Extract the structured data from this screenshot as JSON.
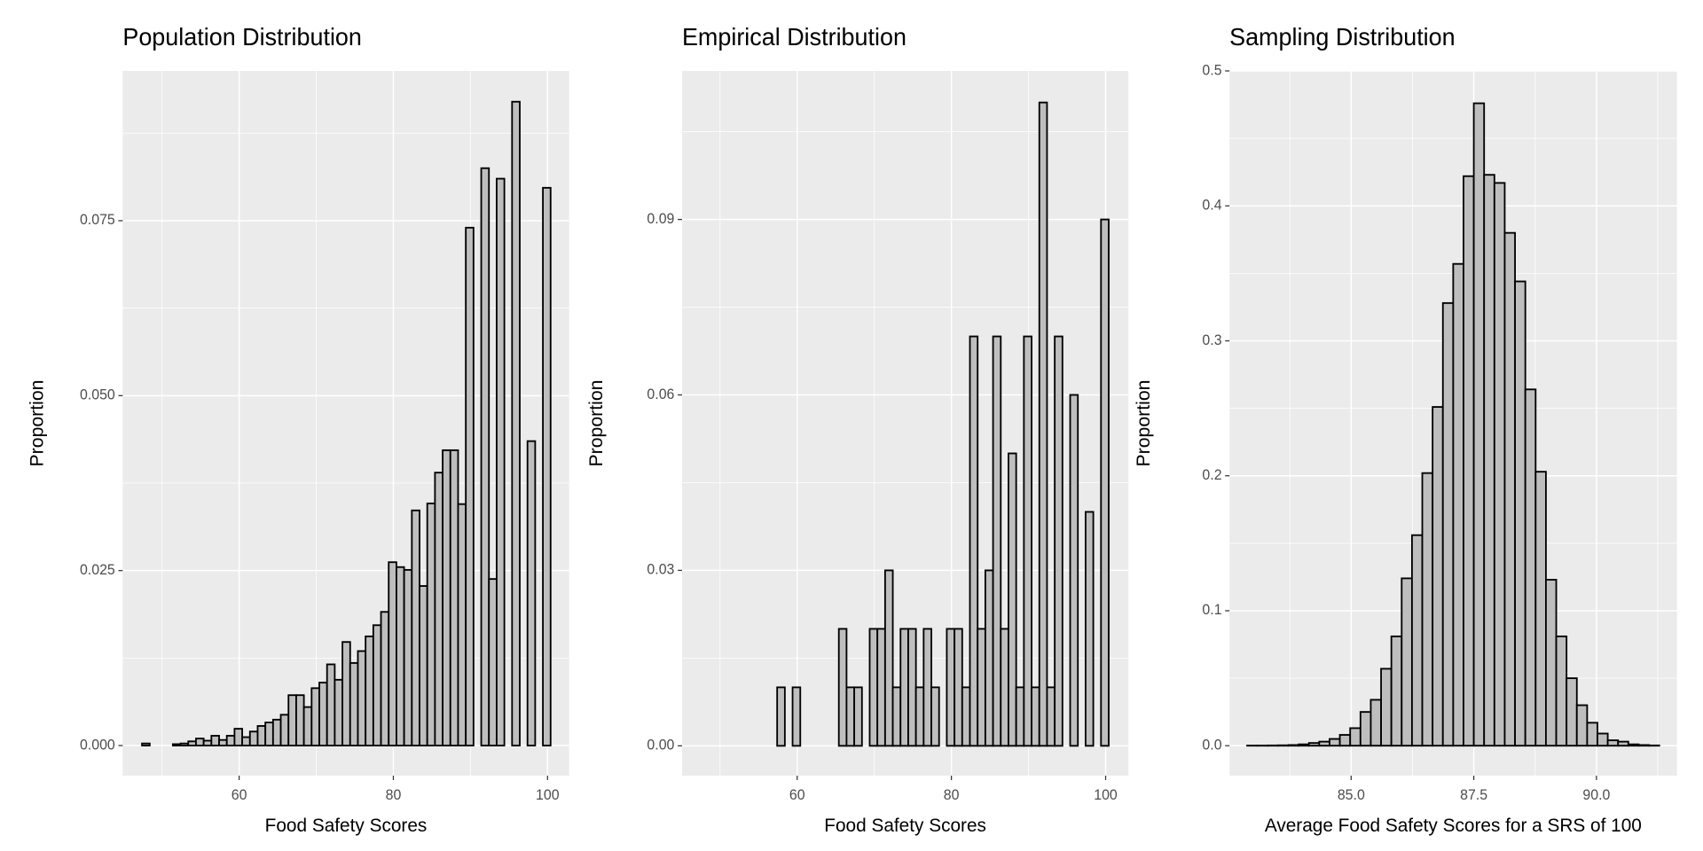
{
  "chart_data": [
    {
      "type": "histogram",
      "title": "Population Distribution",
      "xlabel": "Food Safety Scores",
      "ylabel": "Proportion",
      "bins": [
        47.4,
        48.4,
        49.4,
        50.4,
        51.4,
        52.4,
        53.4,
        54.4,
        55.4,
        56.4,
        57.4,
        58.4,
        59.4,
        60.4,
        61.4,
        62.4,
        63.4,
        64.4,
        65.4,
        66.4,
        67.4,
        68.4,
        69.4,
        70.4,
        71.4,
        72.4,
        73.4,
        74.4,
        75.4,
        76.4,
        77.4,
        78.4,
        79.4,
        80.4,
        81.4,
        82.4,
        83.4,
        84.4,
        85.4,
        86.4,
        87.4,
        88.4,
        89.4,
        90.4,
        91.4,
        92.4,
        93.4,
        94.4,
        95.4,
        96.4,
        97.4,
        98.4,
        99.4,
        100.4
      ],
      "values": [
        0.0003,
        0,
        0,
        0,
        0.0002,
        0.0003,
        0.0006,
        0.001,
        0.0007,
        0.0014,
        0.0008,
        0.0014,
        0.0024,
        0.0012,
        0.002,
        0.0028,
        0.0033,
        0.0037,
        0.0044,
        0.0072,
        0.0072,
        0.0055,
        0.0082,
        0.009,
        0.0116,
        0.0094,
        0.0148,
        0.0118,
        0.0135,
        0.0156,
        0.0172,
        0.0191,
        0.0262,
        0.0255,
        0.0251,
        0.0336,
        0.0228,
        0.0346,
        0.039,
        0.0422,
        0.0422,
        0.0345,
        0.074,
        0,
        0.0825,
        0.0238,
        0.081,
        0,
        0.092,
        0,
        0.0435,
        0,
        0.0797
      ],
      "color": "#bebebe",
      "xlim": [
        44.9,
        102.8
      ],
      "ylim": [
        -0.0043,
        0.0964
      ],
      "xticks": [
        60,
        80,
        100
      ],
      "yticks": [
        {
          "value": 0,
          "label": "0.000"
        },
        0.025,
        {
          "value": 0.05,
          "label": "0.050"
        },
        0.075
      ],
      "grid": true
    },
    {
      "type": "histogram",
      "title": "Empirical Distribution",
      "xlabel": "Food Safety Scores",
      "ylabel": "Proportion",
      "bins": [
        47.4,
        48.4,
        49.4,
        50.4,
        51.4,
        52.4,
        53.4,
        54.4,
        55.4,
        56.4,
        57.4,
        58.4,
        59.4,
        60.4,
        61.4,
        62.4,
        63.4,
        64.4,
        65.4,
        66.4,
        67.4,
        68.4,
        69.4,
        70.4,
        71.4,
        72.4,
        73.4,
        74.4,
        75.4,
        76.4,
        77.4,
        78.4,
        79.4,
        80.4,
        81.4,
        82.4,
        83.4,
        84.4,
        85.4,
        86.4,
        87.4,
        88.4,
        89.4,
        90.4,
        91.4,
        92.4,
        93.4,
        94.4,
        95.4,
        96.4,
        97.4,
        98.4,
        99.4,
        100.4
      ],
      "values": [
        0,
        0,
        0,
        0,
        0,
        0,
        0,
        0,
        0,
        0,
        0.01,
        0,
        0.01,
        0,
        0,
        0,
        0,
        0,
        0.02,
        0.01,
        0.01,
        0,
        0.02,
        0.02,
        0.03,
        0.01,
        0.02,
        0.02,
        0.01,
        0.02,
        0.01,
        0,
        0.02,
        0.02,
        0.01,
        0.07,
        0.02,
        0.03,
        0.07,
        0.02,
        0.05,
        0.01,
        0.07,
        0.01,
        0.11,
        0.01,
        0.07,
        0,
        0.06,
        0,
        0.04,
        0,
        0.09
      ],
      "color": "#bebebe",
      "xlim": [
        45.07,
        102.96
      ],
      "ylim": [
        -0.0051,
        0.1154
      ],
      "xticks": [
        60,
        80,
        100
      ],
      "yticks": [
        {
          "value": 0,
          "label": "0.00"
        },
        0.03,
        0.06,
        0.09
      ],
      "grid": true
    },
    {
      "type": "histogram",
      "title": "Sampling Distribution",
      "xlabel": "Average Food Safety Scores for a SRS of 100",
      "ylabel": "Proportion",
      "bins": [
        82.88,
        83.09,
        83.3,
        83.51,
        83.72,
        83.93,
        84.14,
        84.35,
        84.56,
        84.77,
        84.98,
        85.19,
        85.4,
        85.61,
        85.82,
        86.03,
        86.24,
        86.45,
        86.66,
        86.87,
        87.08,
        87.29,
        87.5,
        87.71,
        87.92,
        88.13,
        88.34,
        88.55,
        88.76,
        88.97,
        89.18,
        89.39,
        89.6,
        89.81,
        90.02,
        90.23,
        90.44,
        90.65,
        90.86,
        91.07,
        91.28
      ],
      "values": [
        0.0001,
        0.0001,
        0.0002,
        0.0003,
        0.0005,
        0.001,
        0.002,
        0.003,
        0.005,
        0.008,
        0.013,
        0.025,
        0.034,
        0.057,
        0.081,
        0.124,
        0.156,
        0.202,
        0.251,
        0.328,
        0.357,
        0.422,
        0.476,
        0.423,
        0.417,
        0.38,
        0.344,
        0.264,
        0.203,
        0.123,
        0.081,
        0.05,
        0.03,
        0.017,
        0.009,
        0.004,
        0.003,
        0.001,
        0.0005,
        0.0002
      ],
      "color": "#bebebe",
      "xlim": [
        82.52,
        91.64
      ],
      "ylim": [
        -0.0222,
        0.5
      ],
      "xticks": [
        {
          "value": 85,
          "label": "85.0"
        },
        87.5,
        {
          "value": 90,
          "label": "90.0"
        }
      ],
      "yticks": [
        {
          "value": 0,
          "label": "0.0"
        },
        0.1,
        0.2,
        0.3,
        0.4,
        0.5
      ],
      "grid": true
    }
  ]
}
